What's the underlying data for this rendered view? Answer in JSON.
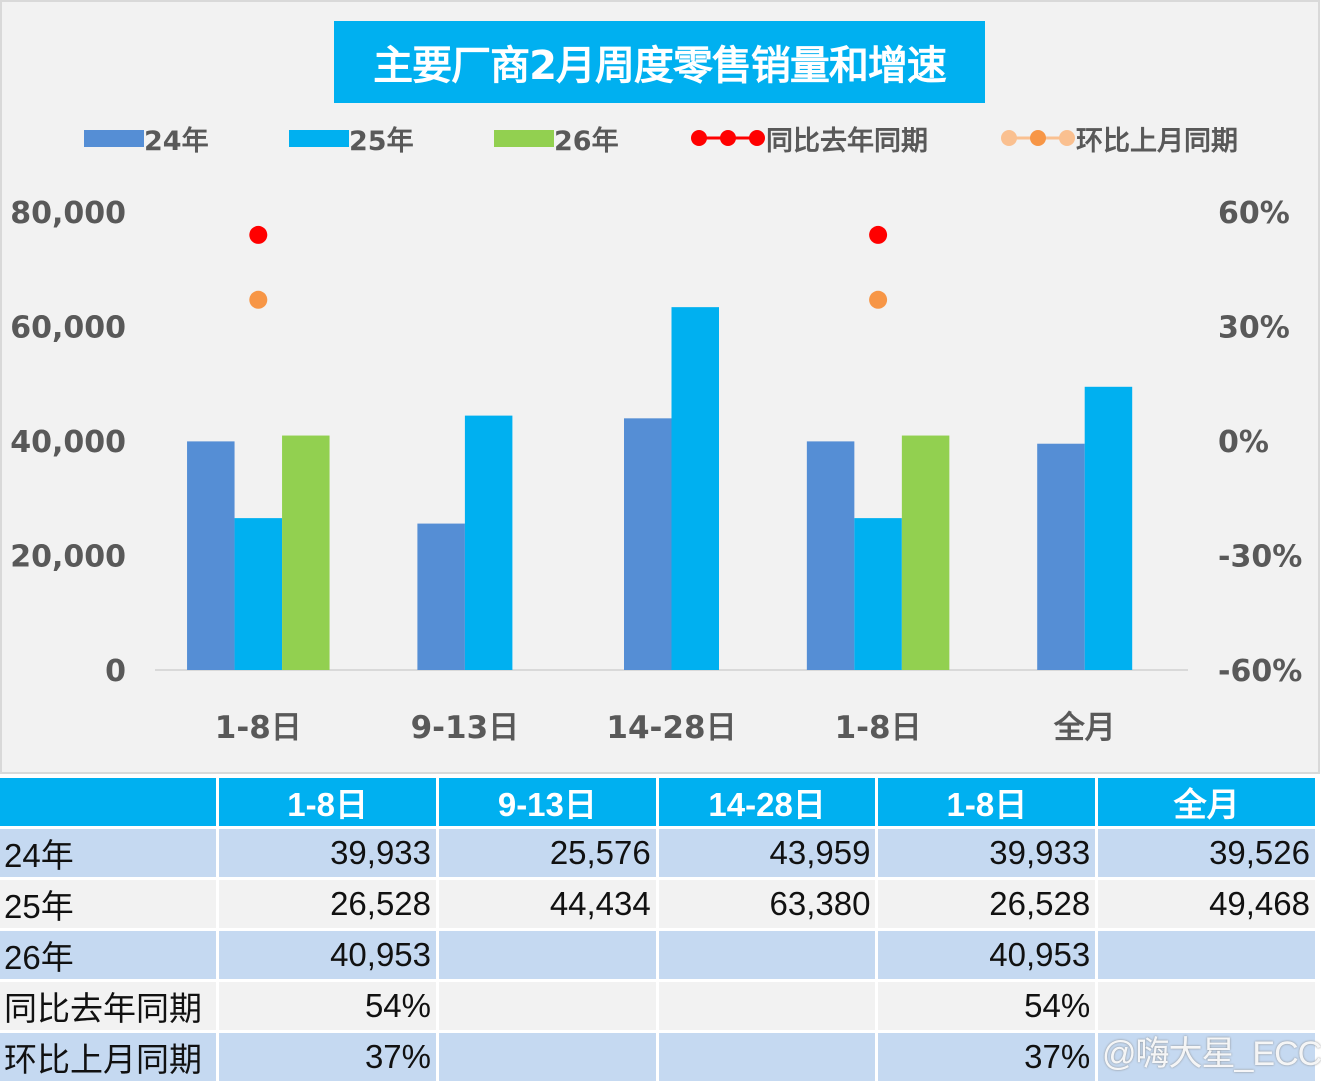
{
  "chart_data": {
    "type": "bar",
    "title": "主要厂商2月周度零售销量和增速",
    "categories": [
      "1-8日",
      "9-13日",
      "14-28日",
      "1-8日",
      "全月"
    ],
    "series": [
      {
        "name": "24年",
        "type": "bar",
        "axis": "left",
        "color": "#558ed5",
        "values": [
          39933,
          25576,
          43959,
          39933,
          39526
        ]
      },
      {
        "name": "25年",
        "type": "bar",
        "axis": "left",
        "color": "#00b0f0",
        "values": [
          26528,
          44434,
          63380,
          26528,
          49468
        ]
      },
      {
        "name": "26年",
        "type": "bar",
        "axis": "left",
        "color": "#92d050",
        "values": [
          40953,
          null,
          null,
          40953,
          null
        ]
      },
      {
        "name": "同比去年同期",
        "type": "scatter",
        "axis": "right",
        "color": "#ff0000",
        "values": [
          54,
          null,
          null,
          54,
          null
        ]
      },
      {
        "name": "环比上月同期",
        "type": "scatter",
        "axis": "right",
        "color": "#f79646",
        "values": [
          37,
          null,
          null,
          37,
          null
        ]
      }
    ],
    "ylim": [
      0,
      80000
    ],
    "yticks": [
      "80,000",
      "60,000",
      "40,000",
      "20,000",
      "0"
    ],
    "y2lim": [
      -60,
      60
    ],
    "y2ticks": [
      "60%",
      "30%",
      "0%",
      "-30%",
      "-60%"
    ],
    "legend": "top",
    "grid": false
  },
  "table": {
    "header": [
      "",
      "1-8日",
      "9-13日",
      "14-28日",
      "1-8日",
      "全月"
    ],
    "rows": [
      [
        "24年",
        "39,933",
        "25,576",
        "43,959",
        "39,933",
        "39,526"
      ],
      [
        "25年",
        "26,528",
        "44,434",
        "63,380",
        "26,528",
        "49,468"
      ],
      [
        "26年",
        "40,953",
        "",
        "",
        "40,953",
        ""
      ],
      [
        "同比去年同期",
        "54%",
        "",
        "",
        "54%",
        ""
      ],
      [
        "环比上月同期",
        "37%",
        "",
        "",
        "37%",
        ""
      ]
    ]
  },
  "watermark": "@嗨大星_ECC"
}
